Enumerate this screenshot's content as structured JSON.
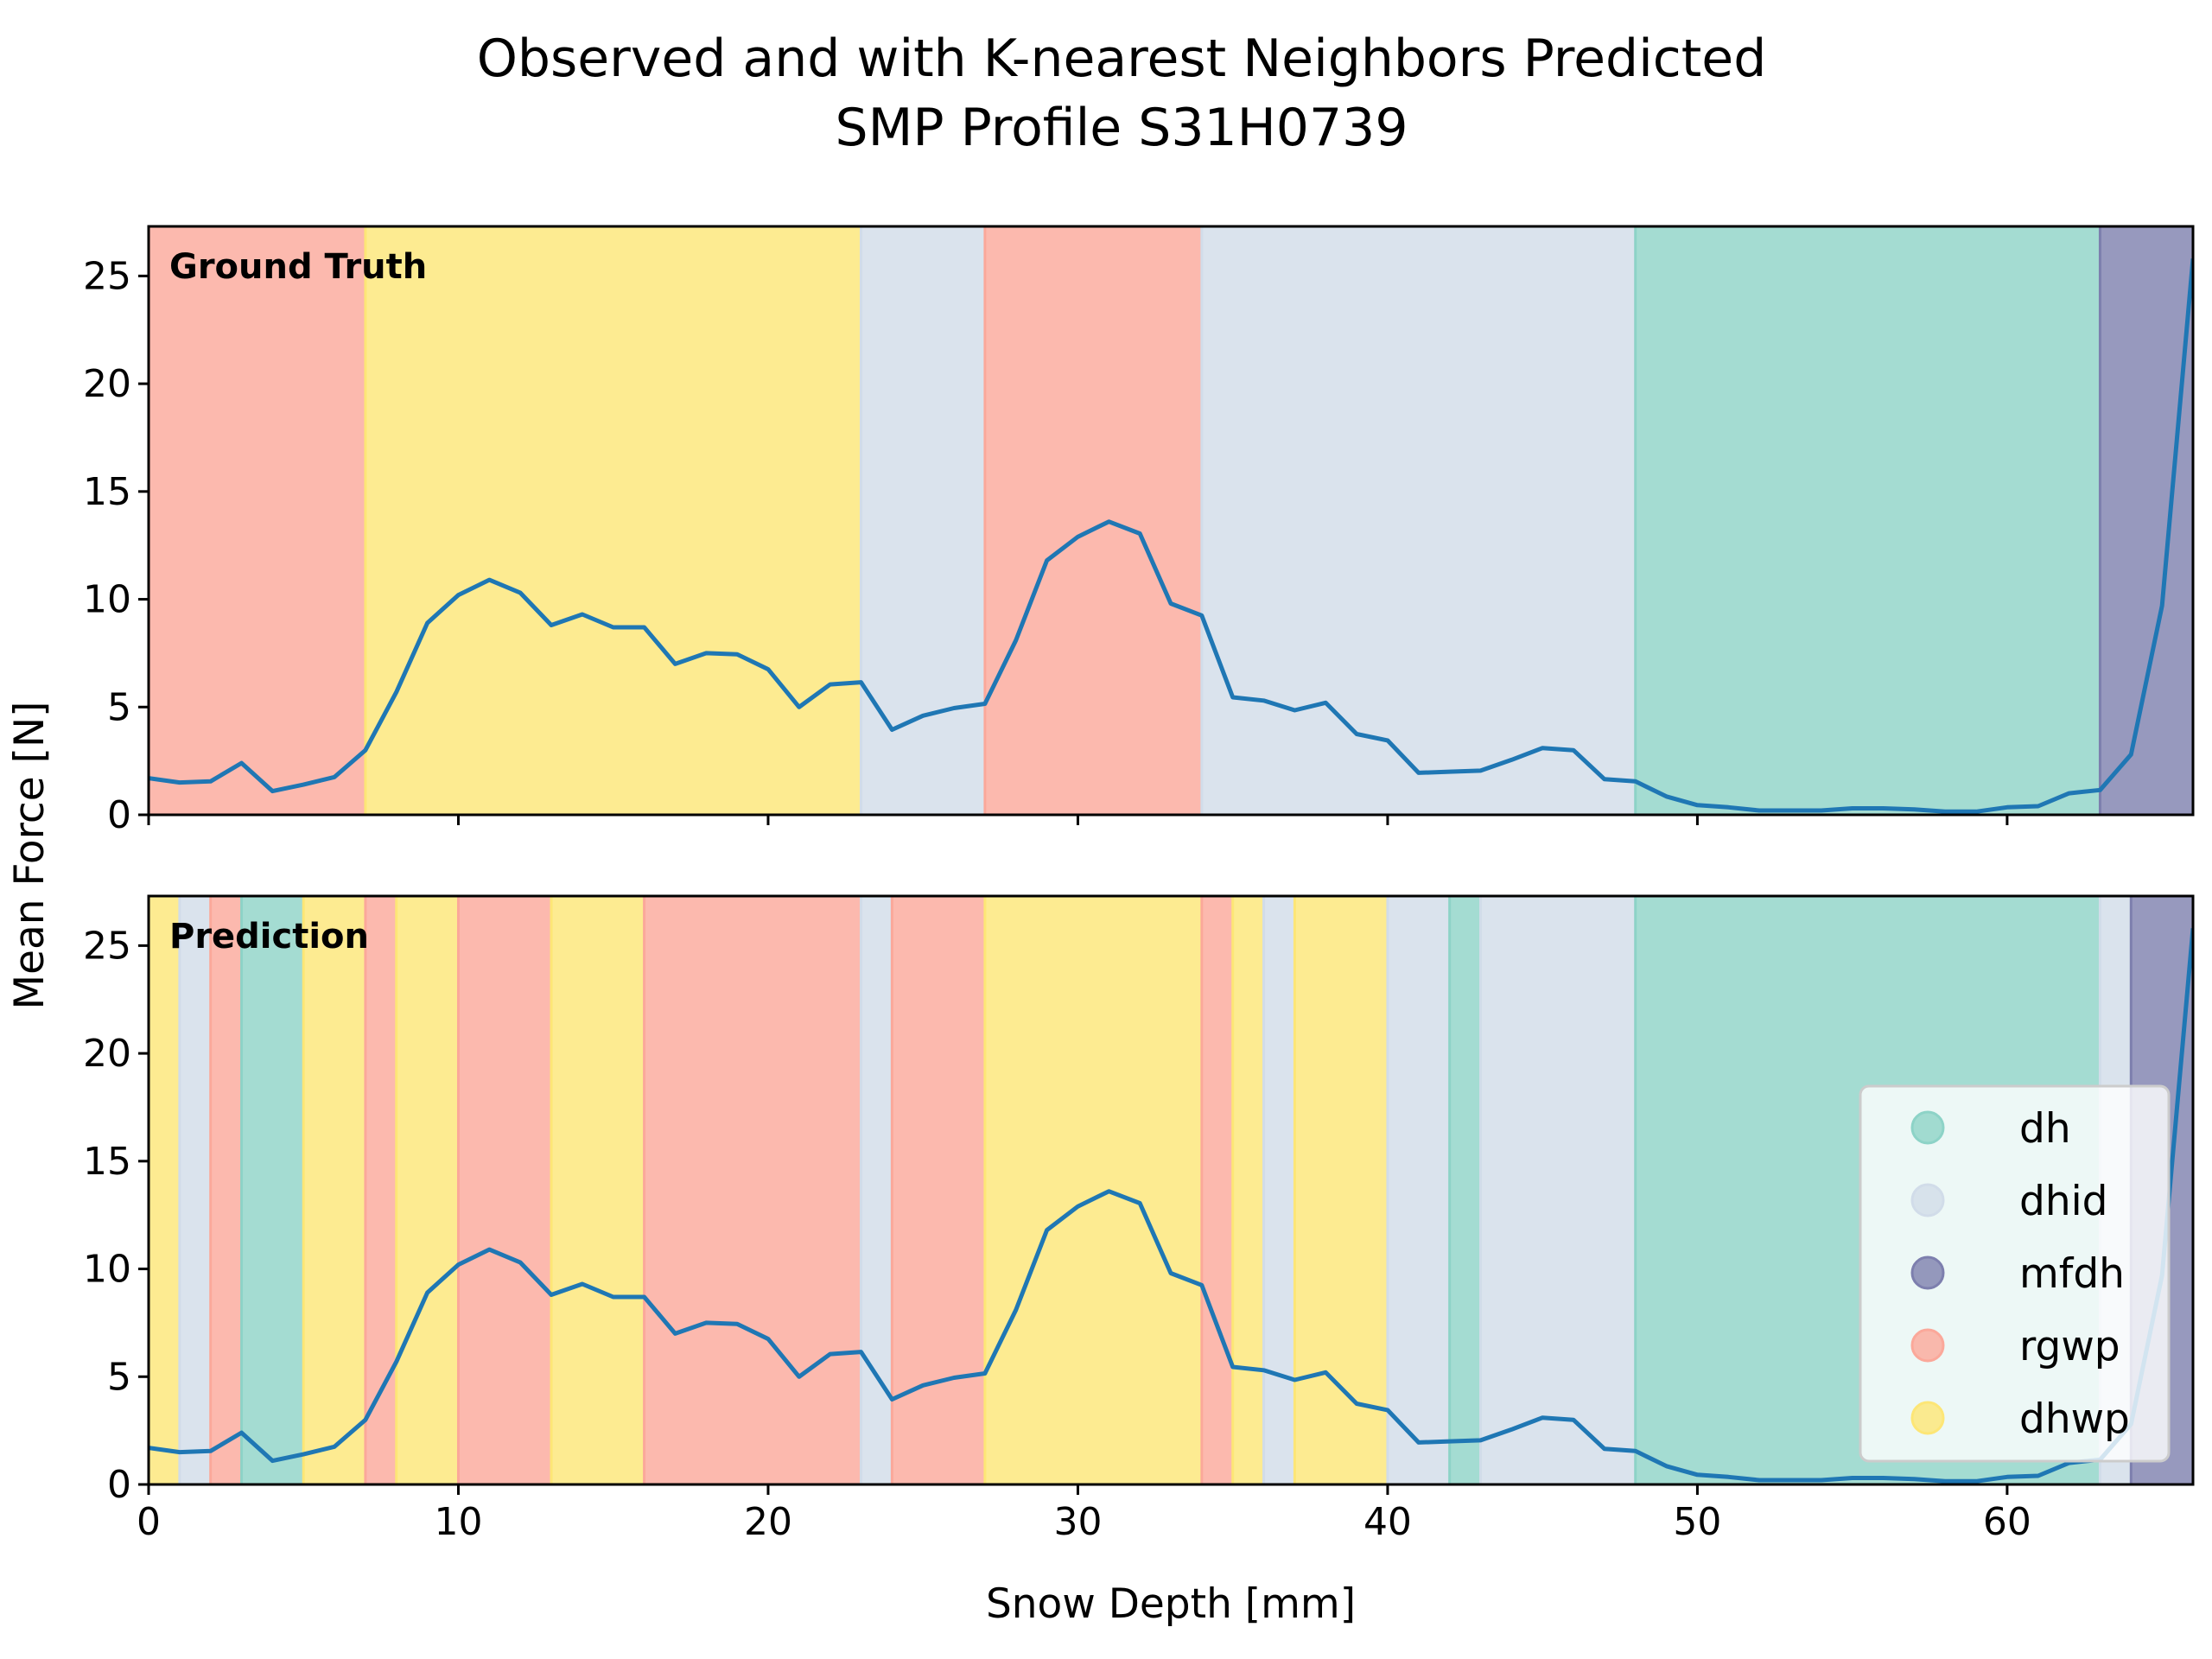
{
  "chart_data": {
    "type": "line",
    "title": [
      "Observed and with K-nearest Neighbors Predicted",
      "SMP Profile S31H0739"
    ],
    "xlabel": "Snow Depth [mm]",
    "ylabel": "Mean Force [N]",
    "xlim": [
      0,
      66
    ],
    "ylim": [
      0,
      27.3
    ],
    "xticks": [
      0,
      10,
      20,
      30,
      40,
      50,
      60
    ],
    "yticks": [
      0,
      5,
      10,
      15,
      20,
      25
    ],
    "grid": false,
    "series_color": "#1f77b4",
    "x": [
      0,
      1,
      2,
      3,
      4,
      5,
      6,
      7,
      8,
      9,
      10,
      11,
      12,
      13,
      14,
      15,
      16,
      17,
      18,
      19,
      20,
      21,
      22,
      23,
      24,
      25,
      26,
      27,
      28,
      29,
      30,
      31,
      32,
      33,
      34,
      35,
      36,
      37,
      38,
      39,
      40,
      41,
      42,
      43,
      44,
      45,
      46,
      47,
      48,
      49,
      50,
      51,
      52,
      53,
      54,
      55,
      56,
      57,
      58,
      59,
      60,
      61,
      62,
      63,
      64,
      65,
      66
    ],
    "y": [
      1.7,
      1.5,
      1.55,
      2.4,
      1.1,
      1.4,
      1.75,
      3.0,
      5.7,
      8.9,
      10.2,
      10.9,
      10.3,
      8.8,
      9.3,
      8.7,
      8.7,
      7.0,
      7.5,
      7.45,
      6.75,
      5.0,
      6.05,
      6.15,
      3.95,
      4.6,
      4.95,
      5.15,
      8.1,
      11.8,
      12.9,
      13.6,
      13.05,
      9.8,
      9.25,
      5.45,
      5.3,
      4.85,
      5.2,
      3.75,
      3.45,
      1.95,
      2.0,
      2.05,
      2.55,
      3.1,
      3.0,
      1.65,
      1.55,
      0.85,
      0.45,
      0.35,
      0.2,
      0.2,
      0.2,
      0.3,
      0.3,
      0.25,
      0.15,
      0.15,
      0.35,
      0.4,
      1.0,
      1.15,
      2.8,
      9.7,
      25.8
    ],
    "classes": [
      {
        "name": "dh",
        "color": "#8dd3c7"
      },
      {
        "name": "dhid",
        "color": "#d1dce9"
      },
      {
        "name": "mfdh",
        "color": "#7d7fae"
      },
      {
        "name": "rgwp",
        "color": "#fba89a"
      },
      {
        "name": "dhwp",
        "color": "#fde676"
      }
    ],
    "legend_position": "lower-right",
    "panels": [
      {
        "label": "Ground Truth",
        "segments": [
          {
            "start": 0,
            "end": 7,
            "class": "rgwp"
          },
          {
            "start": 7,
            "end": 23,
            "class": "dhwp"
          },
          {
            "start": 23,
            "end": 27,
            "class": "dhid"
          },
          {
            "start": 27,
            "end": 34,
            "class": "rgwp"
          },
          {
            "start": 34,
            "end": 48,
            "class": "dhid"
          },
          {
            "start": 48,
            "end": 63,
            "class": "dh"
          },
          {
            "start": 63,
            "end": 66,
            "class": "mfdh"
          }
        ]
      },
      {
        "label": "Prediction",
        "segments": [
          {
            "start": 0,
            "end": 1,
            "class": "dhwp"
          },
          {
            "start": 1,
            "end": 2,
            "class": "dhid"
          },
          {
            "start": 2,
            "end": 3,
            "class": "rgwp"
          },
          {
            "start": 3,
            "end": 5,
            "class": "dh"
          },
          {
            "start": 5,
            "end": 7,
            "class": "dhwp"
          },
          {
            "start": 7,
            "end": 8,
            "class": "rgwp"
          },
          {
            "start": 8,
            "end": 10,
            "class": "dhwp"
          },
          {
            "start": 10,
            "end": 13,
            "class": "rgwp"
          },
          {
            "start": 13,
            "end": 16,
            "class": "dhwp"
          },
          {
            "start": 16,
            "end": 23,
            "class": "rgwp"
          },
          {
            "start": 23,
            "end": 24,
            "class": "dhid"
          },
          {
            "start": 24,
            "end": 27,
            "class": "rgwp"
          },
          {
            "start": 27,
            "end": 34,
            "class": "dhwp"
          },
          {
            "start": 34,
            "end": 35,
            "class": "rgwp"
          },
          {
            "start": 35,
            "end": 36,
            "class": "dhwp"
          },
          {
            "start": 36,
            "end": 37,
            "class": "dhid"
          },
          {
            "start": 37,
            "end": 40,
            "class": "dhwp"
          },
          {
            "start": 40,
            "end": 42,
            "class": "dhid"
          },
          {
            "start": 42,
            "end": 43,
            "class": "dh"
          },
          {
            "start": 43,
            "end": 48,
            "class": "dhid"
          },
          {
            "start": 48,
            "end": 63,
            "class": "dh"
          },
          {
            "start": 63,
            "end": 64,
            "class": "dhid"
          },
          {
            "start": 64,
            "end": 66,
            "class": "mfdh"
          }
        ]
      }
    ]
  }
}
